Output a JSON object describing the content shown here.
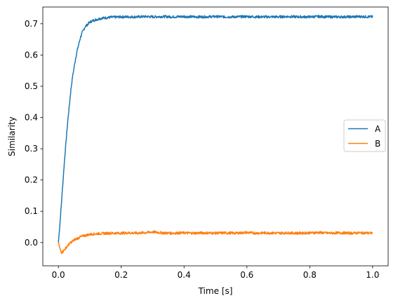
{
  "chart_data": {
    "type": "line",
    "title": "",
    "xlabel": "Time [s]",
    "ylabel": "Similarity",
    "xlim": [
      -0.0495,
      1.0495
    ],
    "ylim": [
      -0.0745,
      0.7535
    ],
    "xticks": [
      0.0,
      0.2,
      0.4,
      0.6,
      0.8,
      1.0
    ],
    "xtick_labels": [
      "0.0",
      "0.2",
      "0.4",
      "0.6",
      "0.8",
      "1.0"
    ],
    "yticks": [
      0.0,
      0.1,
      0.2,
      0.3,
      0.4,
      0.5,
      0.6,
      0.7
    ],
    "ytick_labels": [
      "0.0",
      "0.1",
      "0.2",
      "0.3",
      "0.4",
      "0.5",
      "0.6",
      "0.7"
    ],
    "grid": false,
    "legend_position": "center-right",
    "series": [
      {
        "name": "A",
        "color": "#1f77b4",
        "x": [
          0.0,
          0.005,
          0.01,
          0.015,
          0.02,
          0.025,
          0.03,
          0.035,
          0.04,
          0.045,
          0.05,
          0.055,
          0.06,
          0.065,
          0.07,
          0.075,
          0.08,
          0.085,
          0.09,
          0.095,
          0.1,
          0.11,
          0.12,
          0.13,
          0.14,
          0.15,
          0.16,
          0.17,
          0.18,
          0.2,
          0.22,
          0.25,
          0.28,
          0.3,
          0.33,
          0.36,
          0.4,
          0.43,
          0.46,
          0.5,
          0.53,
          0.56,
          0.6,
          0.63,
          0.66,
          0.7,
          0.73,
          0.76,
          0.8,
          0.83,
          0.86,
          0.9,
          0.93,
          0.96,
          1.0
        ],
        "y": [
          0.0,
          0.06,
          0.13,
          0.2,
          0.27,
          0.33,
          0.39,
          0.44,
          0.49,
          0.53,
          0.56,
          0.59,
          0.615,
          0.635,
          0.655,
          0.67,
          0.68,
          0.69,
          0.695,
          0.7,
          0.705,
          0.71,
          0.713,
          0.716,
          0.718,
          0.719,
          0.72,
          0.721,
          0.721,
          0.722,
          0.722,
          0.722,
          0.723,
          0.722,
          0.723,
          0.722,
          0.723,
          0.722,
          0.722,
          0.723,
          0.722,
          0.722,
          0.723,
          0.722,
          0.722,
          0.722,
          0.723,
          0.722,
          0.722,
          0.723,
          0.722,
          0.722,
          0.722,
          0.723,
          0.722
        ]
      },
      {
        "name": "B",
        "color": "#ff7f0e",
        "x": [
          0.0,
          0.005,
          0.01,
          0.015,
          0.02,
          0.025,
          0.03,
          0.035,
          0.04,
          0.05,
          0.06,
          0.07,
          0.08,
          0.09,
          0.1,
          0.12,
          0.14,
          0.16,
          0.18,
          0.2,
          0.22,
          0.25,
          0.28,
          0.3,
          0.33,
          0.36,
          0.4,
          0.43,
          0.46,
          0.5,
          0.53,
          0.56,
          0.6,
          0.63,
          0.66,
          0.7,
          0.73,
          0.76,
          0.8,
          0.83,
          0.86,
          0.9,
          0.93,
          0.96,
          1.0
        ],
        "y": [
          0.0,
          -0.02,
          -0.032,
          -0.028,
          -0.022,
          -0.016,
          -0.01,
          -0.004,
          0.0,
          0.008,
          0.013,
          0.018,
          0.021,
          0.024,
          0.026,
          0.028,
          0.029,
          0.03,
          0.03,
          0.03,
          0.031,
          0.03,
          0.032,
          0.034,
          0.031,
          0.03,
          0.031,
          0.03,
          0.031,
          0.03,
          0.031,
          0.03,
          0.032,
          0.03,
          0.031,
          0.03,
          0.031,
          0.03,
          0.031,
          0.032,
          0.03,
          0.031,
          0.03,
          0.031,
          0.03
        ]
      }
    ],
    "noise": {
      "A": 0.004,
      "B": 0.004
    }
  }
}
